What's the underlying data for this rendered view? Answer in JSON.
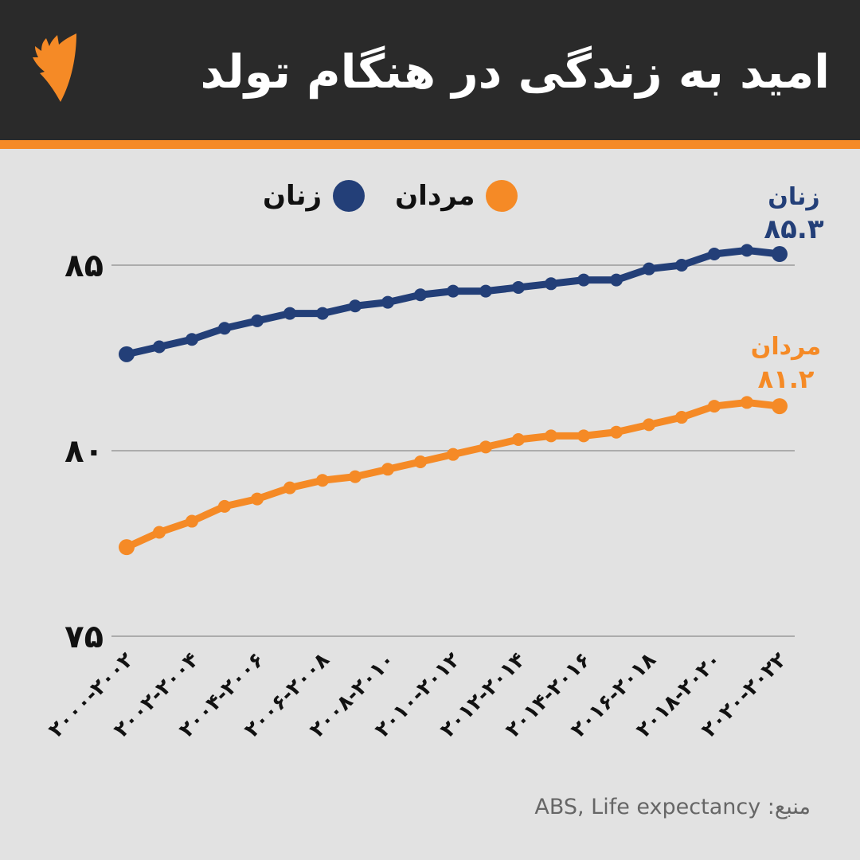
{
  "header": {
    "title": "امید به زندگی در هنگام تولد",
    "logo_icon": "sbs-flame-logo-icon",
    "accent_color": "#f58a26",
    "background_color": "#2a2a2a"
  },
  "legend": {
    "items": [
      {
        "label": "مردان",
        "color": "#f58a26"
      },
      {
        "label": "زنان",
        "color": "#233f78"
      }
    ]
  },
  "end_labels": {
    "women": {
      "name": "زنان",
      "value": "۸۵.۳",
      "color": "#233f78"
    },
    "men": {
      "name": "مردان",
      "value": "۸۱.۲",
      "color": "#f58a26"
    }
  },
  "axis": {
    "y_ticks": [
      {
        "value": 85,
        "label": "۸۵"
      },
      {
        "value": 80,
        "label": "۸۰"
      },
      {
        "value": 75,
        "label": "۷۵"
      }
    ],
    "x_labels": [
      "۲۰۰۰-۲۰۰۲",
      "۲۰۰۲-۲۰۰۴",
      "۲۰۰۴-۲۰۰۶",
      "۲۰۰۶-۲۰۰۸",
      "۲۰۰۸-۲۰۱۰",
      "۲۰۱۰-۲۰۱۲",
      "۲۰۱۲-۲۰۱۴",
      "۲۰۱۴-۲۰۱۶",
      "۲۰۱۶-۲۰۱۸",
      "۲۰۱۸-۲۰۲۰",
      "۲۰۲۰-۲۰۲۲"
    ]
  },
  "source": "منبع: ABS, Life expectancy",
  "chart_data": {
    "type": "line",
    "title": "امید به زندگی در هنگام تولد",
    "xlabel": "",
    "ylabel": "",
    "ylim": [
      75,
      86
    ],
    "grid": true,
    "legend_position": "top",
    "x": [
      "2000-2002",
      "2001-2003",
      "2002-2004",
      "2003-2005",
      "2004-2006",
      "2005-2007",
      "2006-2008",
      "2007-2009",
      "2008-2010",
      "2009-2011",
      "2010-2012",
      "2011-2013",
      "2012-2014",
      "2013-2015",
      "2014-2016",
      "2015-2017",
      "2016-2018",
      "2017-2019",
      "2018-2020",
      "2019-2021",
      "2020-2022"
    ],
    "tick_labels": [
      "2000-2002",
      "2002-2004",
      "2004-2006",
      "2006-2008",
      "2008-2010",
      "2010-2012",
      "2012-2014",
      "2014-2016",
      "2016-2018",
      "2018-2020",
      "2020-2022"
    ],
    "series": [
      {
        "name": "زنان",
        "color": "#233f78",
        "values": [
          82.6,
          82.8,
          83.0,
          83.3,
          83.5,
          83.7,
          83.7,
          83.9,
          84.0,
          84.2,
          84.3,
          84.3,
          84.4,
          84.5,
          84.6,
          84.6,
          84.9,
          85.0,
          85.3,
          85.4,
          85.3
        ]
      },
      {
        "name": "مردان",
        "color": "#f58a26",
        "values": [
          77.4,
          77.8,
          78.1,
          78.5,
          78.7,
          79.0,
          79.2,
          79.3,
          79.5,
          79.7,
          79.9,
          80.1,
          80.3,
          80.4,
          80.4,
          80.5,
          80.7,
          80.9,
          81.2,
          81.3,
          81.2
        ]
      }
    ]
  }
}
